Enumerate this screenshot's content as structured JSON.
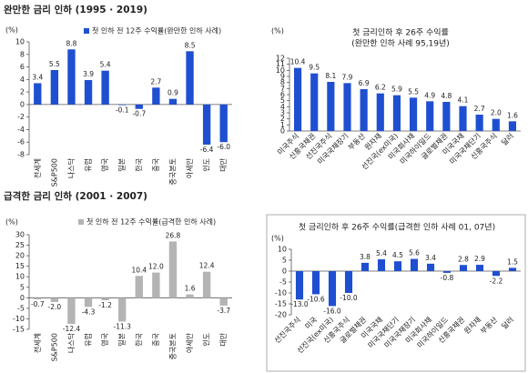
{
  "sections": [
    "완만한 금리 인하 (1995 · 2019)",
    "급격한 금리 인하 (2001 · 2007)"
  ],
  "chart_data": [
    {
      "type": "bar",
      "y_label": "(%)",
      "categories": [
        "전세계",
        "S&P500",
        "나스닥",
        "유럽",
        "영국",
        "일본",
        "한국",
        "중국",
        "중국본토",
        "아세안",
        "인도",
        "대만"
      ],
      "series": [
        {
          "name": "첫 인하 전 12주 수익률(완만한 인하 사례)",
          "color": "#1f4fd1",
          "values": [
            3.4,
            5.5,
            8.8,
            3.9,
            5.4,
            -0.1,
            -0.7,
            2.7,
            0.9,
            8.5,
            -6.4,
            -6.0
          ],
          "value_labels": [
            "3.4",
            "5.5",
            "8.8",
            "3.9",
            "5.4",
            "-0.1",
            "-0.7",
            "2.7",
            "0.9",
            "8.5",
            "-6.4",
            "-6.0"
          ]
        }
      ],
      "ylim": [
        -8,
        10
      ],
      "yticks": [
        -8,
        -6,
        -4,
        -2,
        0,
        2,
        4,
        6,
        8,
        10
      ]
    },
    {
      "type": "bar",
      "y_label": "(%)",
      "title": "첫 금리인하 후 26주 수익률",
      "subtitle": "(완만한 인하 사례 95,19년)",
      "categories": [
        "미국주식",
        "신흥국채권",
        "선진국주식",
        "미국국채장기",
        "부동산",
        "원자재",
        "선진국(ex미국)",
        "미국회사채",
        "미국하이일드",
        "글로벌채권",
        "미국국채",
        "미국국채단기",
        "신흥국주식",
        "달러"
      ],
      "values": [
        10.4,
        9.5,
        8.1,
        7.9,
        6.9,
        6.2,
        5.9,
        5.5,
        4.9,
        4.8,
        4.1,
        2.7,
        2.0,
        1.6
      ],
      "value_labels": [
        "10.4",
        "9.5",
        "8.1",
        "7.9",
        "6.9",
        "6.2",
        "5.9",
        "5.5",
        "4.9",
        "4.8",
        "4.1",
        "2.7",
        "2.0",
        "1.6"
      ],
      "color": "#1f4fd1",
      "ylim": [
        0,
        12
      ],
      "yticks": [
        0,
        1,
        2,
        3,
        4,
        5,
        6,
        7,
        8,
        9,
        10,
        11,
        12
      ]
    },
    {
      "type": "bar",
      "y_label": "(%)",
      "categories": [
        "전세계",
        "S&P500",
        "나스닥",
        "유럽",
        "영국",
        "일본",
        "한국",
        "중국",
        "중국본토",
        "아세안",
        "인도",
        "대만"
      ],
      "series": [
        {
          "name": "첫 인하 전 12주 수익률(급격한 인하 사례)",
          "color": "#b4b4b4",
          "values": [
            -0.7,
            -2.0,
            -12.4,
            -4.3,
            -1.2,
            -11.3,
            10.4,
            12.0,
            26.8,
            1.6,
            12.4,
            -3.7
          ],
          "value_labels": [
            "-0.7",
            "-2.0",
            "-12.4",
            "-4.3",
            "-1.2",
            "-11.3",
            "10.4",
            "12.0",
            "26.8",
            "1.6",
            "12.4",
            "-3.7"
          ]
        }
      ],
      "ylim": [
        -15,
        30
      ],
      "yticks": [
        -15,
        -10,
        -5,
        0,
        5,
        10,
        15,
        20,
        25,
        30
      ]
    },
    {
      "type": "bar",
      "y_label": "(%)",
      "title": "첫 금리인하 후 26주 수익률(급격한 인하 사례 01, 07년)",
      "categories": [
        "선진국주식",
        "미국",
        "선진국(ex미국)",
        "신흥국주식",
        "글로벌채권",
        "미국국채",
        "미국국채단기",
        "미국국채장기",
        "미국회사채",
        "미국하이일드",
        "신흥국채권",
        "원자재",
        "부동산",
        "달러"
      ],
      "values": [
        -13.0,
        -10.6,
        -16.0,
        -10.0,
        3.8,
        5.4,
        4.5,
        5.6,
        3.4,
        -0.8,
        2.8,
        2.9,
        -2.2,
        1.5
      ],
      "value_labels": [
        "-13.0",
        "-10.6",
        "-16.0",
        "-10.0",
        "3.8",
        "5.4",
        "4.5",
        "5.6",
        "3.4",
        "-0.8",
        "2.8",
        "2.9",
        "-2.2",
        "1.5"
      ],
      "color": "#1f4fd1",
      "ylim": [
        -20,
        10
      ],
      "yticks": [
        -20,
        -15,
        -10,
        -5,
        0,
        5,
        10
      ]
    }
  ]
}
